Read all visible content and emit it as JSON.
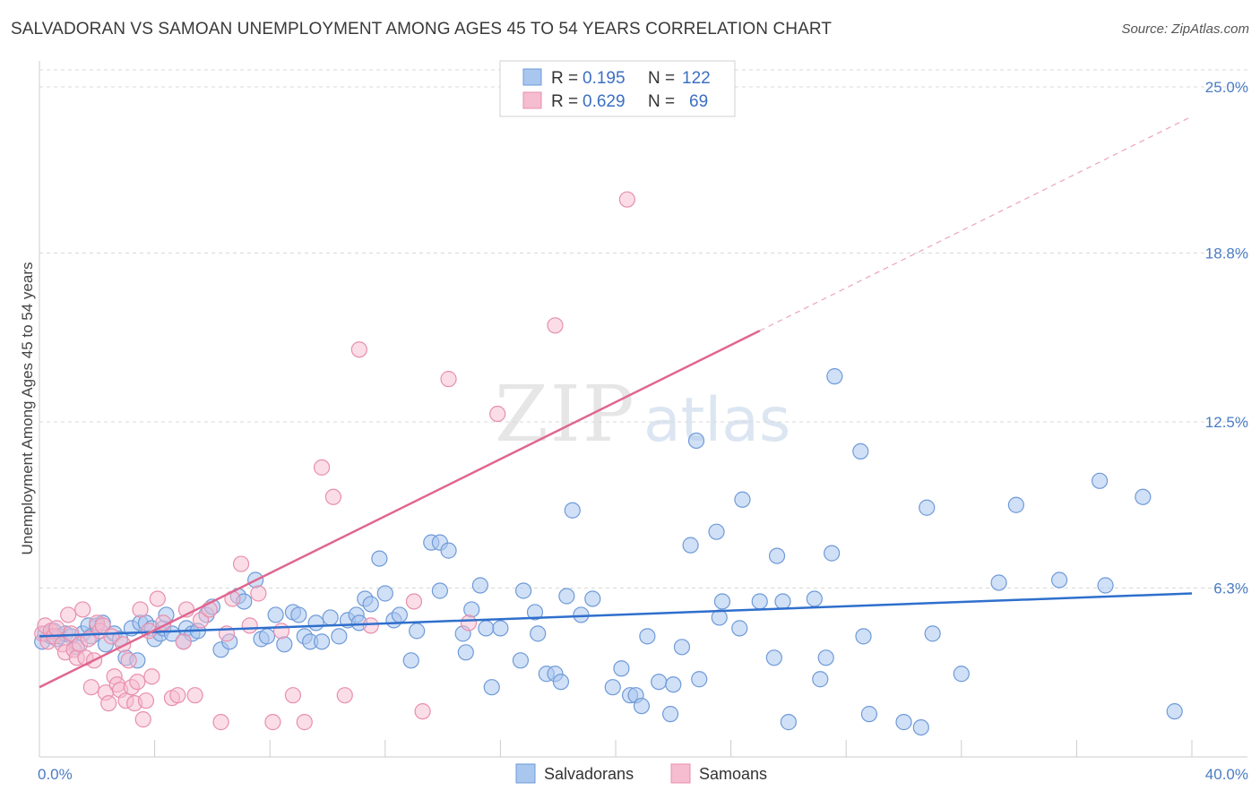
{
  "title": "SALVADORAN VS SAMOAN UNEMPLOYMENT AMONG AGES 45 TO 54 YEARS CORRELATION CHART",
  "source": "Source: ZipAtlas.com",
  "watermark": {
    "zip": "ZIP",
    "atlas": "atlas"
  },
  "colors": {
    "blue_fill": "#a9c6ee",
    "blue_stroke": "#6f9ad8",
    "blue_line": "#2f6fcc",
    "pink_fill": "#f6bcd0",
    "pink_stroke": "#e88fad",
    "pink_line": "#e06690",
    "grid": "#d8d8d8",
    "axis_label": "#4a7cc4"
  },
  "legend": {
    "row1": {
      "r_label": "R =",
      "r_value": "0.195",
      "n_label": "N =",
      "n_value": "122"
    },
    "row2": {
      "r_label": "R =",
      "r_value": "0.629",
      "n_label": "N =",
      "n_value": "69"
    }
  },
  "bottom_legend": {
    "salvadorans": "Salvadorans",
    "samoans": "Samoans"
  },
  "chart_data": {
    "type": "scatter",
    "title": "SALVADORAN VS SAMOAN UNEMPLOYMENT AMONG AGES 45 TO 54 YEARS CORRELATION CHART",
    "xlabel": "",
    "ylabel": "Unemployment Among Ages 45 to 54 years",
    "xlim": [
      0,
      40
    ],
    "ylim": [
      0,
      25
    ],
    "x_tick_labels": {
      "left": "0.0%",
      "right": "40.0%"
    },
    "y_ticks": [
      {
        "value": 6.3,
        "label": "6.3%"
      },
      {
        "value": 12.5,
        "label": "12.5%"
      },
      {
        "value": 18.8,
        "label": "18.8%"
      },
      {
        "value": 25.0,
        "label": "25.0%"
      }
    ],
    "grid": "horizontal dashed",
    "legend_position": "top-center",
    "series": [
      {
        "name": "Salvadorans",
        "color": "#a9c6ee",
        "r": 0.195,
        "n": 122,
        "trend": {
          "x": [
            0,
            40
          ],
          "y": [
            4.5,
            6.1
          ],
          "dashed_extension": false
        },
        "points": [
          [
            0.1,
            4.3
          ],
          [
            0.2,
            4.6
          ],
          [
            0.4,
            4.5
          ],
          [
            0.5,
            4.7
          ],
          [
            0.6,
            4.4
          ],
          [
            0.7,
            4.5
          ],
          [
            0.9,
            4.6
          ],
          [
            1.1,
            4.5
          ],
          [
            1.3,
            4.1
          ],
          [
            1.5,
            4.6
          ],
          [
            1.7,
            4.9
          ],
          [
            1.8,
            4.5
          ],
          [
            2.0,
            4.9
          ],
          [
            2.2,
            5.0
          ],
          [
            2.3,
            4.2
          ],
          [
            2.6,
            4.6
          ],
          [
            2.8,
            4.4
          ],
          [
            3.0,
            3.7
          ],
          [
            3.2,
            4.8
          ],
          [
            3.4,
            3.6
          ],
          [
            3.5,
            5.0
          ],
          [
            3.7,
            5.0
          ],
          [
            3.9,
            4.8
          ],
          [
            4.0,
            4.4
          ],
          [
            4.2,
            4.6
          ],
          [
            4.3,
            4.8
          ],
          [
            4.4,
            5.3
          ],
          [
            4.6,
            4.6
          ],
          [
            5.0,
            4.3
          ],
          [
            5.1,
            4.8
          ],
          [
            5.3,
            4.6
          ],
          [
            5.5,
            4.7
          ],
          [
            5.8,
            5.3
          ],
          [
            6.0,
            5.6
          ],
          [
            6.3,
            4.0
          ],
          [
            6.6,
            4.3
          ],
          [
            6.9,
            6.0
          ],
          [
            7.1,
            5.8
          ],
          [
            7.5,
            6.6
          ],
          [
            7.7,
            4.4
          ],
          [
            7.9,
            4.5
          ],
          [
            8.2,
            5.3
          ],
          [
            8.5,
            4.2
          ],
          [
            8.8,
            5.4
          ],
          [
            9.0,
            5.3
          ],
          [
            9.2,
            4.5
          ],
          [
            9.4,
            4.3
          ],
          [
            9.6,
            5.0
          ],
          [
            9.8,
            4.3
          ],
          [
            10.1,
            5.2
          ],
          [
            10.4,
            4.5
          ],
          [
            10.7,
            5.1
          ],
          [
            11.0,
            5.3
          ],
          [
            11.1,
            5.0
          ],
          [
            11.3,
            5.9
          ],
          [
            11.5,
            5.7
          ],
          [
            11.8,
            7.4
          ],
          [
            12.0,
            6.1
          ],
          [
            12.3,
            5.1
          ],
          [
            12.5,
            5.3
          ],
          [
            12.9,
            3.6
          ],
          [
            13.1,
            4.7
          ],
          [
            13.6,
            8.0
          ],
          [
            13.9,
            8.0
          ],
          [
            13.9,
            6.2
          ],
          [
            14.2,
            7.7
          ],
          [
            14.7,
            4.6
          ],
          [
            14.8,
            3.9
          ],
          [
            15.0,
            5.5
          ],
          [
            15.3,
            6.4
          ],
          [
            15.5,
            4.8
          ],
          [
            15.7,
            2.6
          ],
          [
            16.0,
            4.8
          ],
          [
            16.7,
            3.6
          ],
          [
            16.8,
            6.2
          ],
          [
            17.2,
            5.4
          ],
          [
            17.3,
            4.6
          ],
          [
            17.6,
            3.1
          ],
          [
            17.9,
            3.1
          ],
          [
            18.1,
            2.8
          ],
          [
            18.3,
            6.0
          ],
          [
            18.5,
            9.2
          ],
          [
            18.8,
            5.3
          ],
          [
            19.2,
            5.9
          ],
          [
            19.9,
            2.6
          ],
          [
            20.2,
            3.3
          ],
          [
            20.5,
            2.3
          ],
          [
            20.7,
            2.3
          ],
          [
            20.9,
            1.9
          ],
          [
            21.1,
            4.5
          ],
          [
            21.5,
            2.8
          ],
          [
            21.9,
            1.6
          ],
          [
            22.0,
            2.7
          ],
          [
            22.3,
            4.1
          ],
          [
            22.6,
            7.9
          ],
          [
            22.8,
            11.8
          ],
          [
            22.9,
            2.9
          ],
          [
            23.5,
            8.4
          ],
          [
            23.6,
            5.2
          ],
          [
            23.7,
            5.8
          ],
          [
            24.3,
            4.8
          ],
          [
            24.4,
            9.6
          ],
          [
            25.0,
            5.8
          ],
          [
            25.5,
            3.7
          ],
          [
            25.6,
            7.5
          ],
          [
            25.8,
            5.8
          ],
          [
            26.0,
            1.3
          ],
          [
            26.9,
            5.9
          ],
          [
            27.1,
            2.9
          ],
          [
            27.3,
            3.7
          ],
          [
            27.5,
            7.6
          ],
          [
            27.6,
            14.2
          ],
          [
            28.5,
            11.4
          ],
          [
            28.6,
            4.5
          ],
          [
            28.8,
            1.6
          ],
          [
            30.0,
            1.3
          ],
          [
            30.6,
            1.1
          ],
          [
            30.8,
            9.3
          ],
          [
            31.0,
            4.6
          ],
          [
            32.0,
            3.1
          ],
          [
            33.3,
            6.5
          ],
          [
            33.9,
            9.4
          ],
          [
            35.4,
            6.6
          ],
          [
            36.8,
            10.3
          ],
          [
            37.0,
            6.4
          ],
          [
            38.3,
            9.7
          ],
          [
            39.4,
            1.7
          ]
        ]
      },
      {
        "name": "Samoans",
        "color": "#f6bcd0",
        "r": 0.629,
        "n": 69,
        "trend": {
          "x": [
            0,
            25
          ],
          "y": [
            2.6,
            15.9
          ],
          "dashed_extension_to": [
            40,
            23.9
          ]
        },
        "points": [
          [
            0.1,
            4.6
          ],
          [
            0.2,
            4.9
          ],
          [
            0.3,
            4.3
          ],
          [
            0.4,
            4.7
          ],
          [
            0.5,
            4.5
          ],
          [
            0.6,
            4.8
          ],
          [
            0.8,
            4.2
          ],
          [
            0.9,
            3.9
          ],
          [
            1.0,
            5.3
          ],
          [
            1.1,
            4.6
          ],
          [
            1.2,
            4.0
          ],
          [
            1.3,
            3.7
          ],
          [
            1.4,
            4.2
          ],
          [
            1.5,
            5.5
          ],
          [
            1.6,
            3.7
          ],
          [
            1.7,
            4.4
          ],
          [
            1.8,
            2.6
          ],
          [
            1.9,
            3.6
          ],
          [
            2.0,
            5.0
          ],
          [
            2.1,
            4.7
          ],
          [
            2.2,
            4.9
          ],
          [
            2.3,
            2.4
          ],
          [
            2.4,
            2.0
          ],
          [
            2.5,
            4.5
          ],
          [
            2.6,
            3.0
          ],
          [
            2.7,
            2.7
          ],
          [
            2.8,
            2.5
          ],
          [
            2.9,
            4.2
          ],
          [
            3.0,
            2.1
          ],
          [
            3.1,
            3.6
          ],
          [
            3.2,
            2.6
          ],
          [
            3.3,
            2.0
          ],
          [
            3.4,
            2.8
          ],
          [
            3.5,
            5.5
          ],
          [
            3.6,
            1.4
          ],
          [
            3.7,
            2.1
          ],
          [
            3.8,
            4.7
          ],
          [
            3.9,
            3.0
          ],
          [
            4.1,
            5.9
          ],
          [
            4.3,
            5.0
          ],
          [
            4.6,
            2.2
          ],
          [
            4.8,
            2.3
          ],
          [
            5.0,
            4.3
          ],
          [
            5.1,
            5.5
          ],
          [
            5.4,
            2.3
          ],
          [
            5.6,
            5.1
          ],
          [
            5.9,
            5.5
          ],
          [
            6.3,
            1.3
          ],
          [
            6.5,
            4.6
          ],
          [
            6.7,
            5.9
          ],
          [
            7.0,
            7.2
          ],
          [
            7.3,
            4.9
          ],
          [
            7.6,
            6.1
          ],
          [
            8.1,
            1.3
          ],
          [
            8.4,
            4.7
          ],
          [
            8.8,
            2.3
          ],
          [
            9.2,
            1.3
          ],
          [
            9.8,
            10.8
          ],
          [
            10.2,
            9.7
          ],
          [
            10.6,
            2.3
          ],
          [
            11.1,
            15.2
          ],
          [
            11.5,
            4.9
          ],
          [
            13.0,
            5.8
          ],
          [
            13.3,
            1.7
          ],
          [
            14.2,
            14.1
          ],
          [
            14.9,
            5.0
          ],
          [
            15.9,
            12.8
          ],
          [
            17.9,
            16.1
          ],
          [
            20.4,
            20.8
          ]
        ]
      }
    ]
  }
}
